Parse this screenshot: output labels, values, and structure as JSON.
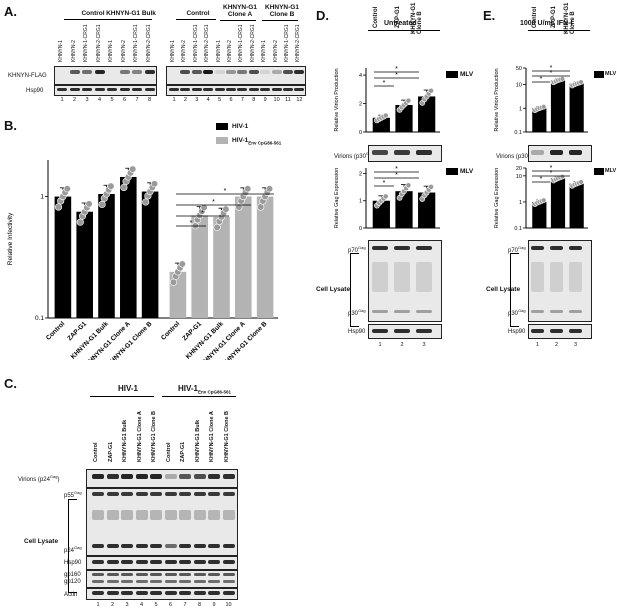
{
  "panels": {
    "a": {
      "label": "A.",
      "group_headers": [
        "Control",
        "KHNYN-G1 Bulk",
        "Control",
        "KHNYN-G1 Clone A",
        "KHNYN-G1 Clone B"
      ],
      "lane_labels": [
        "KHNYN-1",
        "KHNYN-2",
        "KHNYN-1-CRG1",
        "KHNYN-2-CRG1",
        "KHNYN-1",
        "KHNYN-2",
        "KHNYN-1-CRG1",
        "KHNYN-2-CRG1",
        "KHNYN-1",
        "KHNYN-2",
        "KHNYN-1-CRG1",
        "KHNYN-2-CRG1",
        "KHNYN-1",
        "KHNYN-2",
        "KHNYN-1-CRG1",
        "KHNYN-2-CRG1",
        "KHNYN-1",
        "KHNYN-2",
        "KHNYN-1-CRG1",
        "KHNYN-2-CRG1"
      ],
      "row_labels": [
        "KHNYN-FLAG",
        "Hsp90"
      ],
      "lane_numbers_left": [
        "1",
        "2",
        "3",
        "4",
        "5",
        "6",
        "7",
        "8"
      ],
      "lane_numbers_right": [
        "1",
        "2",
        "3",
        "4",
        "5",
        "6",
        "7",
        "8",
        "9",
        "10",
        "11",
        "12"
      ]
    },
    "b": {
      "label": "B.",
      "legend": [
        "HIV-1",
        "HIV-1Env CpG86-561"
      ],
      "legend_sub": "Env CpG86-561",
      "significance": "*"
    },
    "c": {
      "label": "C.",
      "group_headers": [
        "HIV-1",
        "HIV-1"
      ],
      "group_sub": "Env CpG86-561",
      "lane_labels": [
        "Control",
        "ZAP-G1",
        "KHNYN-G1 Bulk",
        "KHNYN-G1 Clone A",
        "KHNYN-G1 Clone B",
        "Control",
        "ZAP-G1",
        "KHNYN-G1 Bulk",
        "KHNYN-G1 Clone A",
        "KHNYN-G1 Clone B"
      ],
      "row_labels": {
        "virions": "Virions (p24Gag)",
        "p55": "p55Gag",
        "lysate": "Cell Lysate",
        "p24": "p24Gag",
        "hsp90": "Hsp90",
        "gp160": "gp160",
        "gp120": "gp120",
        "actin": "Actin"
      },
      "lane_numbers": [
        "1",
        "2",
        "3",
        "4",
        "5",
        "6",
        "7",
        "8",
        "9",
        "10"
      ]
    },
    "d": {
      "label": "D.",
      "title": "Untreated",
      "lane_labels": [
        "Control",
        "ZAP-G1",
        "KHNYN-G1 Clone B"
      ],
      "legend": "MLV",
      "row_labels": {
        "virions": "Virions (p30Gag)",
        "p70": "p70Gag",
        "lysate": "Cell Lysate",
        "p30": "p30Gag",
        "hsp90": "Hsp90"
      },
      "lane_numbers": [
        "1",
        "2",
        "3"
      ]
    },
    "e": {
      "label": "E.",
      "title": "1000 U/mL IFN-I",
      "lane_labels": [
        "Control",
        "ZAP-G1",
        "KHNYN-G1 Clone B"
      ],
      "legend": "MLV",
      "row_labels": {
        "virions": "Virions (p30Gag)",
        "p70": "p70Gag",
        "lysate": "Cell Lysate",
        "p30": "p30Gag",
        "hsp90": "Hsp90"
      },
      "lane_numbers": [
        "1",
        "2",
        "3"
      ]
    }
  },
  "chart_data": [
    {
      "panel": "B",
      "type": "bar",
      "ylabel": "Relative Infectivity",
      "yscale": "log",
      "ylim": [
        0.1,
        2
      ],
      "yticks": [
        "1",
        "0.1"
      ],
      "categories": [
        "Control",
        "ZAP-G1",
        "KHNYN-G1 Bulk",
        "KHNYN-G1 Clone A",
        "KHNYN-G1 Clone B"
      ],
      "series": [
        {
          "name": "HIV-1",
          "color": "#000000",
          "values": [
            1.0,
            0.75,
            1.05,
            1.45,
            1.1
          ]
        },
        {
          "name": "HIV-1Env CpG86-561",
          "color": "#b3b3b3",
          "values": [
            0.24,
            0.7,
            0.68,
            1.0,
            1.0
          ]
        }
      ]
    },
    {
      "panel": "D",
      "type": "bar",
      "ylabel": "Relative Virion Production",
      "ylim": [
        0,
        4.5
      ],
      "yticks": [
        "0",
        "2",
        "4"
      ],
      "categories": [
        "Control",
        "ZAP-G1",
        "KHNYN-G1 Clone B"
      ],
      "series": [
        {
          "name": "MLV",
          "color": "#000000",
          "values": [
            1.0,
            1.9,
            2.5
          ]
        }
      ]
    },
    {
      "panel": "D",
      "type": "bar",
      "ylabel": "Relative Gag Expression",
      "ylim": [
        0,
        2.2
      ],
      "yticks": [
        "0",
        "1",
        "2"
      ],
      "categories": [
        "Control",
        "ZAP-G1",
        "KHNYN-G1 Clone B"
      ],
      "series": [
        {
          "name": "MLV",
          "color": "#000000",
          "values": [
            1.0,
            1.35,
            1.3
          ]
        }
      ]
    },
    {
      "panel": "E",
      "type": "bar",
      "ylabel": "Relative Virion Production",
      "yscale": "log",
      "ylim": [
        0.1,
        50
      ],
      "yticks": [
        "50",
        "10",
        "1",
        "0.1"
      ],
      "categories": [
        "Control",
        "ZAP-G1",
        "KHNYN-G1 Clone B"
      ],
      "series": [
        {
          "name": "MLV",
          "color": "#000000",
          "values": [
            1.0,
            15,
            11
          ]
        }
      ]
    },
    {
      "panel": "E",
      "type": "bar",
      "ylabel": "Relative Gag Expression",
      "yscale": "log",
      "ylim": [
        0.1,
        20
      ],
      "yticks": [
        "20",
        "10",
        "1",
        "0.1"
      ],
      "categories": [
        "Control",
        "ZAP-G1",
        "KHNYN-G1 Clone B"
      ],
      "series": [
        {
          "name": "MLV",
          "color": "#000000",
          "values": [
            1.0,
            8,
            5
          ]
        }
      ]
    }
  ]
}
